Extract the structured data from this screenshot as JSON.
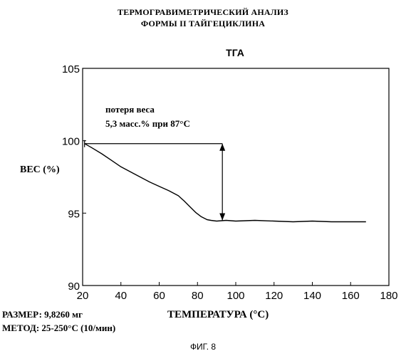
{
  "header": {
    "title_line1": "ТЕРМОГРАВИМЕТРИЧЕСКИЙ АНАЛИЗ",
    "title_line2": "ФОРМЫ II ТАЙГЕЦИКЛИНА"
  },
  "notes": {
    "size": "РАЗМЕР: 9,8260 мг",
    "method": "МЕТОД: 25-250°С (10/мин)",
    "figure": "ФИГ. 8"
  },
  "annotation": {
    "line1": "потеря веса",
    "line2": "5,3 масс.% при 87°С",
    "start": [
      21,
      99.8
    ],
    "end_x": 93,
    "end_y": 94.5
  },
  "chart_data": {
    "type": "line",
    "title": "ТГА",
    "xlabel": "ТЕМПЕРАТУРА (°С)",
    "ylabel": "ВЕС (%)",
    "xlim": [
      20,
      180
    ],
    "ylim": [
      90,
      105
    ],
    "xticks": [
      20,
      40,
      60,
      80,
      100,
      120,
      140,
      160,
      180
    ],
    "yticks": [
      90,
      95,
      100,
      105
    ],
    "grid": false,
    "series": [
      {
        "color": "#000000",
        "x": [
          21,
          25,
          30,
          35,
          40,
          45,
          50,
          55,
          60,
          65,
          70,
          73,
          76,
          79,
          82,
          85,
          87,
          90,
          95,
          100,
          110,
          120,
          130,
          140,
          150,
          160,
          168
        ],
        "y": [
          99.8,
          99.5,
          99.1,
          98.65,
          98.2,
          97.85,
          97.5,
          97.15,
          96.85,
          96.55,
          96.2,
          95.85,
          95.45,
          95.05,
          94.75,
          94.55,
          94.5,
          94.45,
          94.5,
          94.45,
          94.5,
          94.45,
          94.4,
          94.45,
          94.4,
          94.4,
          94.4
        ]
      }
    ]
  }
}
